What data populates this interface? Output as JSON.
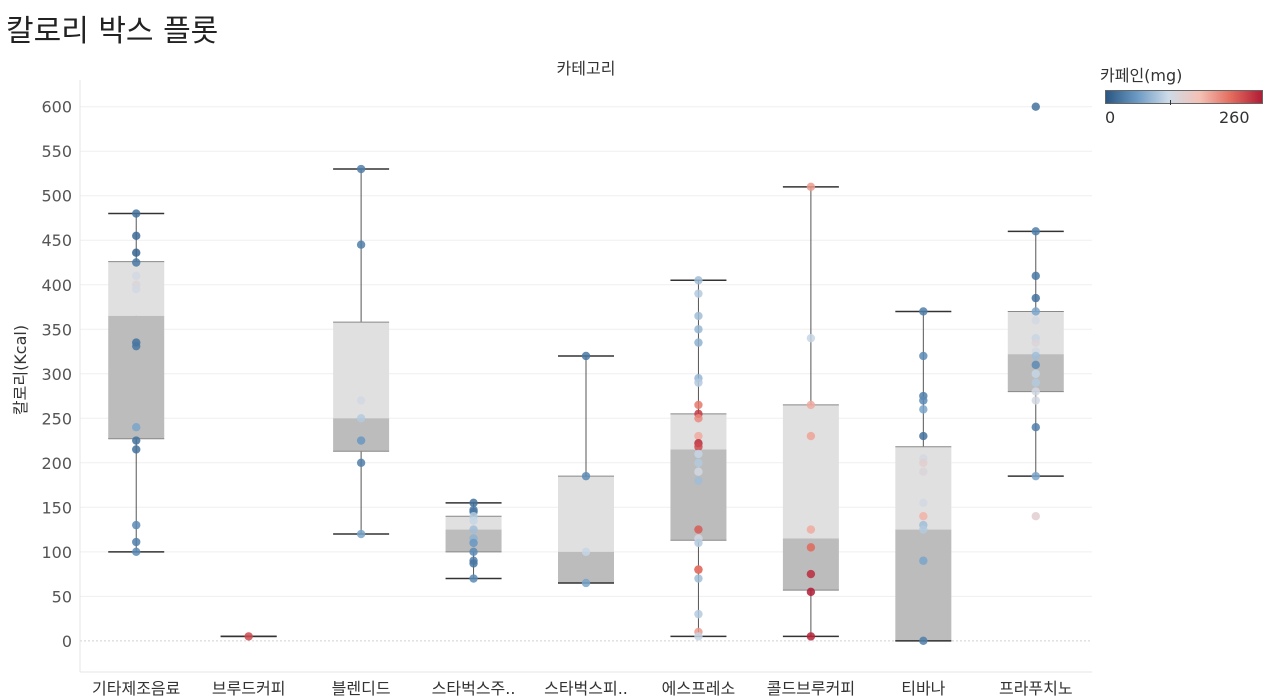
{
  "page": {
    "title": "칼로리 박스 플롯"
  },
  "legend": {
    "title": "카페인(mg)",
    "min_label": "0",
    "max_label": "260",
    "colors": [
      "#2a5783",
      "#6b9ac4",
      "#cddbe8",
      "#f4c1b5",
      "#e36c5e",
      "#b11c36"
    ]
  },
  "chart_data": {
    "type": "box",
    "header": "카테고리",
    "ylabel": "칼로리(Kcal)",
    "ylim": [
      -35,
      630
    ],
    "yticks": [
      0,
      50,
      100,
      150,
      200,
      250,
      300,
      350,
      400,
      450,
      500,
      550,
      600
    ],
    "categories": [
      "기타제조음료",
      "브루드커피",
      "블렌디드",
      "스타벅스주..",
      "스타벅스피..",
      "에스프레소",
      "콜드브루커피",
      "티바나",
      "프라푸치노"
    ],
    "boxes": [
      {
        "min": 100,
        "q1": 227,
        "median": 365,
        "q3": 426,
        "max": 480,
        "points": [
          [
            480,
            20
          ],
          [
            455,
            15
          ],
          [
            436,
            10
          ],
          [
            425,
            25
          ],
          [
            410,
            110
          ],
          [
            400,
            120
          ],
          [
            395,
            110
          ],
          [
            335,
            20
          ],
          [
            331,
            25
          ],
          [
            240,
            60
          ],
          [
            225,
            20
          ],
          [
            215,
            20
          ],
          [
            130,
            40
          ],
          [
            111,
            30
          ],
          [
            100,
            40
          ]
        ]
      },
      {
        "min": 5,
        "q1": 5,
        "median": 5,
        "q3": 5,
        "max": 5,
        "points": [
          [
            5,
            230
          ]
        ]
      },
      {
        "min": 120,
        "q1": 213,
        "median": 250,
        "q3": 358,
        "max": 530,
        "points": [
          [
            530,
            30
          ],
          [
            445,
            30
          ],
          [
            270,
            110
          ],
          [
            250,
            90
          ],
          [
            225,
            50
          ],
          [
            200,
            30
          ],
          [
            120,
            60
          ]
        ]
      },
      {
        "min": 70,
        "q1": 100,
        "median": 125,
        "q3": 140,
        "max": 155,
        "points": [
          [
            155,
            20
          ],
          [
            147,
            30
          ],
          [
            145,
            25
          ],
          [
            140,
            90
          ],
          [
            135,
            100
          ],
          [
            125,
            80
          ],
          [
            115,
            70
          ],
          [
            110,
            50
          ],
          [
            100,
            40
          ],
          [
            90,
            30
          ],
          [
            87,
            25
          ],
          [
            70,
            40
          ]
        ]
      },
      {
        "min": 65,
        "q1": 65,
        "median": 100,
        "q3": 185,
        "max": 320,
        "points": [
          [
            320,
            25
          ],
          [
            185,
            40
          ],
          [
            100,
            100
          ],
          [
            65,
            60
          ]
        ]
      },
      {
        "min": 5,
        "q1": 113,
        "median": 215,
        "q3": 255,
        "max": 405,
        "points": [
          [
            405,
            80
          ],
          [
            390,
            90
          ],
          [
            365,
            80
          ],
          [
            350,
            75
          ],
          [
            335,
            70
          ],
          [
            295,
            75
          ],
          [
            290,
            90
          ],
          [
            265,
            200
          ],
          [
            255,
            240
          ],
          [
            250,
            190
          ],
          [
            230,
            170
          ],
          [
            222,
            250
          ],
          [
            218,
            230
          ],
          [
            210,
            100
          ],
          [
            200,
            90
          ],
          [
            190,
            110
          ],
          [
            180,
            80
          ],
          [
            125,
            220
          ],
          [
            115,
            110
          ],
          [
            110,
            90
          ],
          [
            80,
            230
          ],
          [
            80,
            200
          ],
          [
            70,
            80
          ],
          [
            30,
            90
          ],
          [
            10,
            180
          ],
          [
            5,
            100
          ]
        ]
      },
      {
        "min": 5,
        "q1": 57,
        "median": 115,
        "q3": 265,
        "max": 510,
        "points": [
          [
            510,
            180
          ],
          [
            340,
            100
          ],
          [
            265,
            170
          ],
          [
            230,
            175
          ],
          [
            125,
            170
          ],
          [
            105,
            210
          ],
          [
            75,
            250
          ],
          [
            55,
            260
          ],
          [
            5,
            255
          ]
        ]
      },
      {
        "min": 0,
        "q1": 0,
        "median": 125,
        "q3": 218,
        "max": 370,
        "points": [
          [
            370,
            30
          ],
          [
            320,
            40
          ],
          [
            275,
            30
          ],
          [
            270,
            40
          ],
          [
            260,
            60
          ],
          [
            230,
            20
          ],
          [
            205,
            110
          ],
          [
            200,
            130
          ],
          [
            190,
            120
          ],
          [
            155,
            110
          ],
          [
            140,
            165
          ],
          [
            130,
            80
          ],
          [
            125,
            90
          ],
          [
            90,
            60
          ],
          [
            0,
            30
          ]
        ]
      },
      {
        "min": 185,
        "q1": 280,
        "median": 322,
        "q3": 370,
        "max": 460,
        "points": [
          [
            600,
            20
          ],
          [
            460,
            30
          ],
          [
            410,
            25
          ],
          [
            385,
            20
          ],
          [
            370,
            60
          ],
          [
            360,
            110
          ],
          [
            340,
            100
          ],
          [
            335,
            120
          ],
          [
            325,
            110
          ],
          [
            320,
            80
          ],
          [
            310,
            40
          ],
          [
            300,
            100
          ],
          [
            290,
            90
          ],
          [
            280,
            110
          ],
          [
            270,
            110
          ],
          [
            240,
            30
          ],
          [
            185,
            60
          ],
          [
            140,
            130
          ]
        ]
      }
    ]
  }
}
